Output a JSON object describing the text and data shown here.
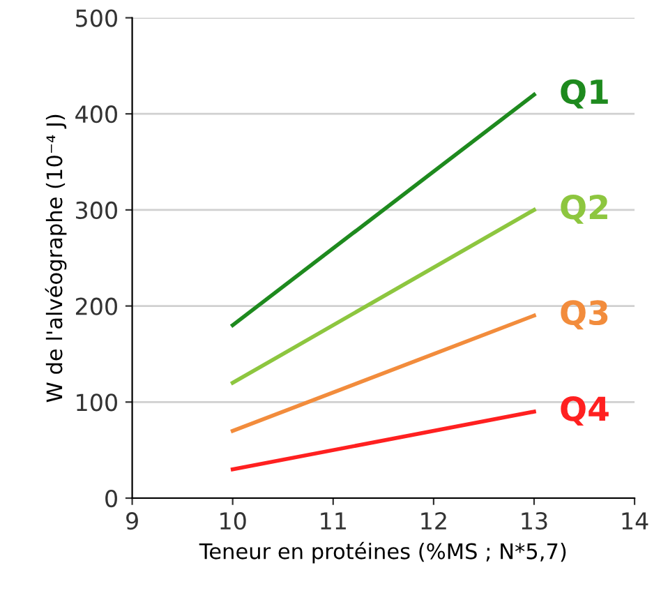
{
  "chart_data": {
    "type": "line",
    "xlabel": "Teneur en protéines (%MS ; N*5,7)",
    "ylabel": "W de l'alvéographe (10⁻⁴ J)",
    "xlim": [
      9,
      14
    ],
    "xticks": [
      9,
      10,
      11,
      12,
      13,
      14
    ],
    "ylim": [
      0,
      500
    ],
    "yticks": [
      0,
      100,
      200,
      300,
      400,
      500
    ],
    "grid": "y",
    "marker": "none",
    "line_style": "solid",
    "x": [
      10,
      13
    ],
    "series": [
      {
        "name": "Q1",
        "color": "#1e8a1e",
        "values": [
          180,
          420
        ]
      },
      {
        "name": "Q2",
        "color": "#8dc63f",
        "values": [
          120,
          300
        ]
      },
      {
        "name": "Q3",
        "color": "#f28c3c",
        "values": [
          70,
          190
        ]
      },
      {
        "name": "Q4",
        "color": "#ff2020",
        "values": [
          30,
          90
        ]
      }
    ]
  }
}
